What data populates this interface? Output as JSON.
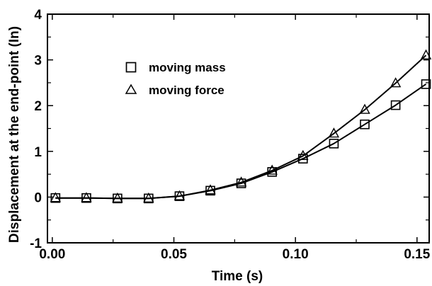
{
  "chart_data": {
    "type": "line",
    "title": "",
    "xlabel": "Time (s)",
    "ylabel": "Displacement at the end-point  (In)",
    "xlim": [
      -0.002,
      0.155
    ],
    "ylim": [
      -1,
      4
    ],
    "xticks": [
      0.0,
      0.05,
      0.1,
      0.15
    ],
    "xtick_labels": [
      "0.00",
      "0.05",
      "0.10",
      "0.15"
    ],
    "yticks": [
      -1,
      0,
      1,
      2,
      3,
      4
    ],
    "ytick_labels": [
      "-1",
      "0",
      "1",
      "2",
      "3",
      "4"
    ],
    "grid": false,
    "legend": "upper-left-inside",
    "series": [
      {
        "name": "moving mass",
        "marker": "square",
        "x": [
          0.0013,
          0.014,
          0.0268,
          0.0396,
          0.0523,
          0.065,
          0.0777,
          0.0904,
          0.1031,
          0.1158,
          0.1285,
          0.1412,
          0.1537
        ],
        "y": [
          -0.02,
          -0.02,
          -0.03,
          -0.03,
          0.02,
          0.14,
          0.3,
          0.55,
          0.84,
          1.17,
          1.59,
          2.01,
          2.47
        ]
      },
      {
        "name": "moving force",
        "marker": "triangle",
        "x": [
          0.0013,
          0.014,
          0.0268,
          0.0396,
          0.0523,
          0.065,
          0.0777,
          0.0904,
          0.1031,
          0.1158,
          0.1285,
          0.1412,
          0.1537
        ],
        "y": [
          -0.02,
          -0.02,
          -0.03,
          -0.03,
          0.02,
          0.15,
          0.32,
          0.58,
          0.9,
          1.39,
          1.91,
          2.49,
          3.1
        ]
      }
    ]
  }
}
